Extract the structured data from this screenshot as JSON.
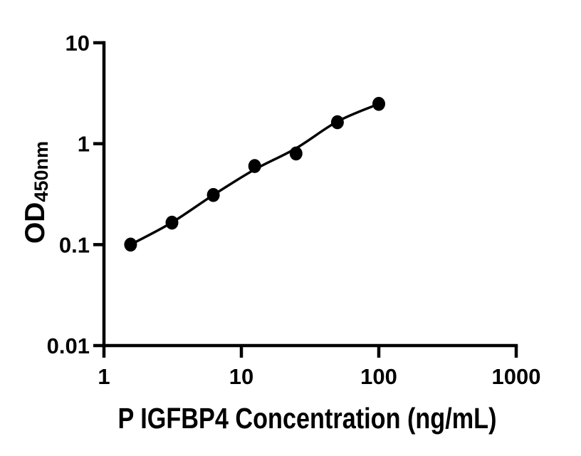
{
  "figure": {
    "background": "#ffffff",
    "description": "ELISA standard curve, log-log scatter plot with fitted line"
  },
  "chart_data": {
    "type": "scatter",
    "title": "",
    "xlabel": "P IGFBP4 Concentration (ng/mL)",
    "ylabel": "OD450nm",
    "ylabel_main": "OD",
    "ylabel_sub": "450nm",
    "x_scale": "log10",
    "y_scale": "log10",
    "xlim": [
      1,
      1000
    ],
    "ylim": [
      0.01,
      10
    ],
    "x_tick_values": [
      1,
      10,
      100,
      1000
    ],
    "x_tick_labels": [
      "1",
      "10",
      "100",
      "1000"
    ],
    "y_tick_values": [
      10,
      1,
      0.1,
      0.01
    ],
    "y_tick_labels": [
      "10",
      "1",
      "0.1",
      "0.01"
    ],
    "grid": false,
    "legend": false,
    "axis_color": "#000000",
    "marker_color": "#000000",
    "line_color": "#000000",
    "series": [
      {
        "name": "standard-points",
        "type": "scatter",
        "marker": "filled-circle",
        "x": [
          1.5625,
          3.125,
          6.25,
          12.5,
          25,
          50,
          100
        ],
        "y": [
          0.1,
          0.165,
          0.31,
          0.6,
          0.8,
          1.63,
          2.48
        ]
      },
      {
        "name": "fit-line",
        "type": "line",
        "x": [
          1.5625,
          3.125,
          6.25,
          12.5,
          25,
          50,
          100
        ],
        "y": [
          0.1,
          0.166,
          0.31,
          0.555,
          0.9,
          1.66,
          2.48
        ]
      }
    ]
  }
}
